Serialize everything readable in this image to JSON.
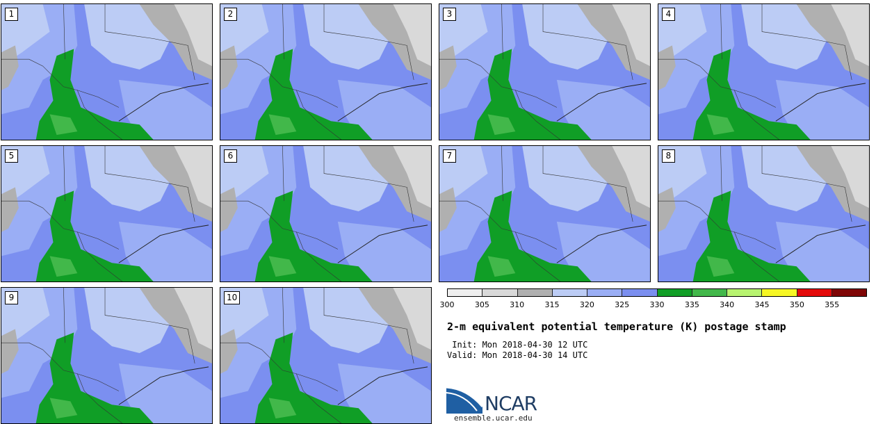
{
  "panels": [
    "1",
    "2",
    "3",
    "4",
    "5",
    "6",
    "7",
    "8",
    "9",
    "10"
  ],
  "legend": {
    "colors": [
      "#efefef",
      "#d9d9d9",
      "#b0b0b0",
      "#bcccf5",
      "#9aaef5",
      "#7b8ff0",
      "#109e26",
      "#42b84a",
      "#b7f36f",
      "#f7f724",
      "#e40a0a",
      "#7f0606"
    ],
    "ticks": [
      "300",
      "305",
      "310",
      "315",
      "320",
      "325",
      "330",
      "335",
      "340",
      "345",
      "350",
      "355"
    ]
  },
  "title": "2-m equivalent potential temperature (K) postage stamp",
  "init": " Init: Mon 2018-04-30 12 UTC",
  "valid": "Valid: Mon 2018-04-30 14 UTC",
  "logo": {
    "text": "NCAR",
    "site": "ensemble.ucar.edu"
  }
}
